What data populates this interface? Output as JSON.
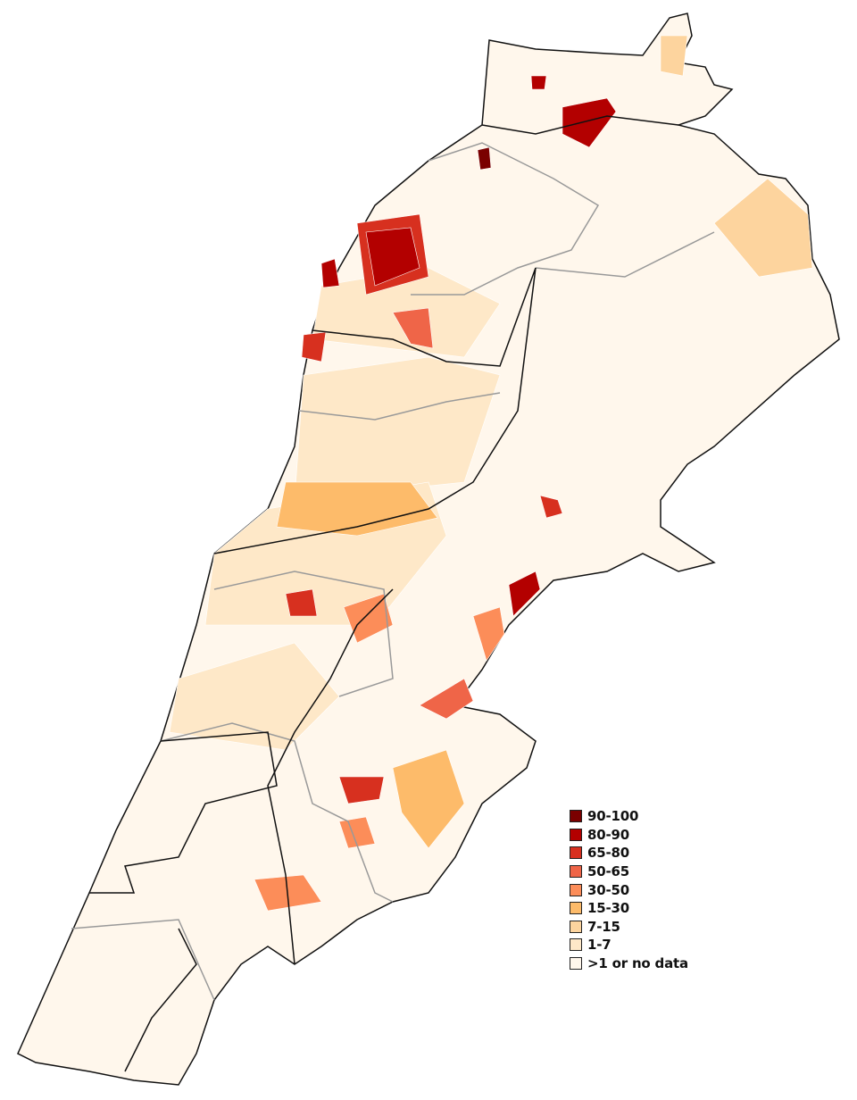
{
  "legend": {
    "items": [
      {
        "label": "90-100",
        "color": "#7a0000"
      },
      {
        "label": "80-90",
        "color": "#b30000"
      },
      {
        "label": "65-80",
        "color": "#d7301f"
      },
      {
        "label": "50-65",
        "color": "#ef6548"
      },
      {
        "label": "30-50",
        "color": "#fc8d59"
      },
      {
        "label": "15-30",
        "color": "#fdbb6a"
      },
      {
        "label": "7-15",
        "color": "#fdd49e"
      },
      {
        "label": "1-7",
        "color": "#fee8c8"
      },
      {
        "label": ">1 or no data",
        "color": "#fff7ec"
      }
    ]
  },
  "map": {
    "border_color": "#111111",
    "district_border_color": "#999999",
    "base_color": "#fff7ec"
  }
}
